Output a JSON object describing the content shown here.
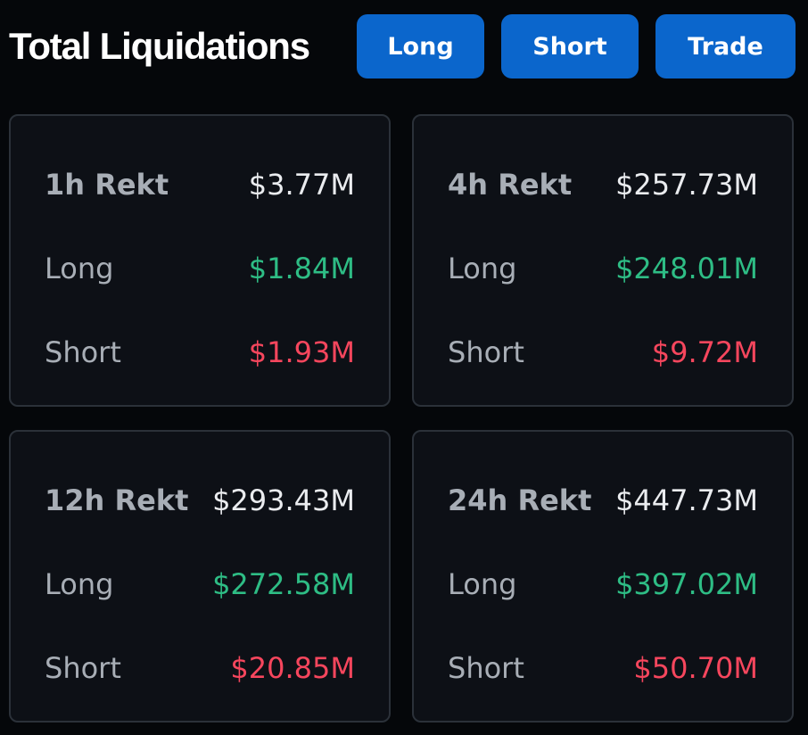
{
  "header": {
    "title": "Total Liquidations",
    "buttons": {
      "long": "Long",
      "short": "Short",
      "trade": "Trade"
    }
  },
  "cards": [
    {
      "period_label": "1h Rekt",
      "total": "$3.77M",
      "long_label": "Long",
      "long": "$1.84M",
      "short_label": "Short",
      "short": "$1.93M"
    },
    {
      "period_label": "4h Rekt",
      "total": "$257.73M",
      "long_label": "Long",
      "long": "$248.01M",
      "short_label": "Short",
      "short": "$9.72M"
    },
    {
      "period_label": "12h Rekt",
      "total": "$293.43M",
      "long_label": "Long",
      "long": "$272.58M",
      "short_label": "Short",
      "short": "$20.85M"
    },
    {
      "period_label": "24h Rekt",
      "total": "$447.73M",
      "long_label": "Long",
      "long": "$397.02M",
      "short_label": "Short",
      "short": "$50.70M"
    }
  ],
  "colors": {
    "background": "#05070a",
    "card": "#0d1016",
    "card_border": "#2b3139",
    "accent_button": "#0b66cc",
    "long_green": "#2ebd85",
    "short_red": "#f6465d",
    "label_gray": "#a8aeb6"
  }
}
